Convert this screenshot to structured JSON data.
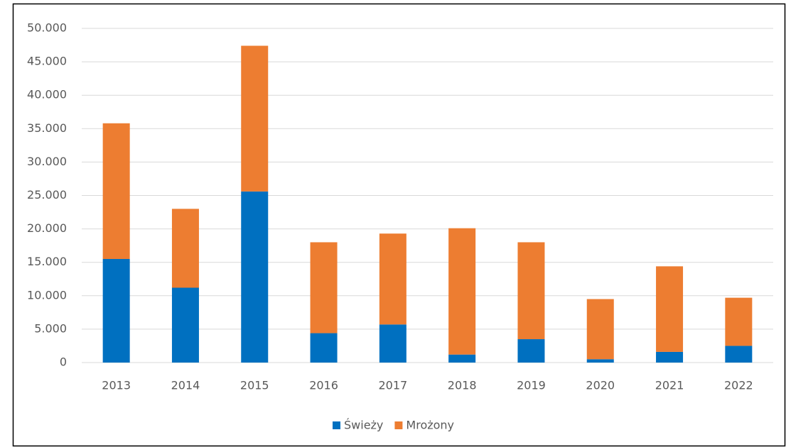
{
  "chart_data": {
    "type": "stacked_bar",
    "categories": [
      "2013",
      "2014",
      "2015",
      "2016",
      "2017",
      "2018",
      "2019",
      "2020",
      "2021",
      "2022"
    ],
    "series": [
      {
        "name": "Świeży",
        "color": "#0070c0",
        "values": [
          15500,
          11200,
          25600,
          4400,
          5700,
          1200,
          3500,
          500,
          1600,
          2500
        ]
      },
      {
        "name": "Mrożony",
        "color": "#ed7d31",
        "values": [
          20300,
          11800,
          21800,
          13600,
          13600,
          18900,
          14500,
          9000,
          12800,
          7200
        ]
      }
    ],
    "ylim": [
      0,
      50000
    ],
    "yticks": [
      0,
      {
        "value": 5000,
        "label": "5.000"
      },
      {
        "value": 10000,
        "label": "10.000"
      },
      {
        "value": 15000,
        "label": "15.000"
      },
      {
        "value": 20000,
        "label": "20.000"
      },
      {
        "value": 25000,
        "label": "25.000"
      },
      {
        "value": 30000,
        "label": "30.000"
      },
      {
        "value": 35000,
        "label": "35.000"
      },
      {
        "value": 40000,
        "label": "40.000"
      },
      {
        "value": 45000,
        "label": "45.000"
      },
      {
        "value": 50000,
        "label": "50.000"
      }
    ],
    "grid": true,
    "legend": "bottom"
  }
}
